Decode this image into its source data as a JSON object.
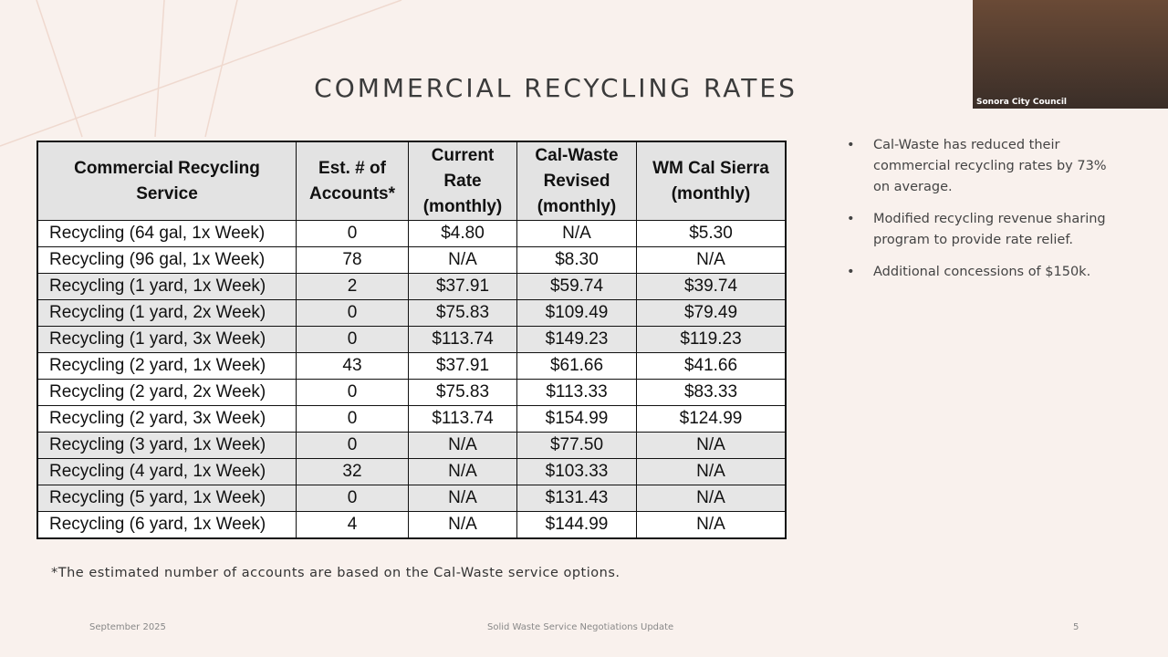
{
  "header": {
    "title": "COMMERCIAL RECYCLING RATES"
  },
  "table": {
    "columns": [
      "Commercial Recycling Service",
      "Est. # of Accounts*",
      "Current Rate (monthly)",
      "Cal-Waste Revised (monthly)",
      "WM Cal Sierra (monthly)"
    ],
    "rows": [
      [
        "Recycling (64 gal, 1x Week)",
        "0",
        "$4.80",
        "N/A",
        "$5.30"
      ],
      [
        "Recycling (96 gal, 1x Week)",
        "78",
        "N/A",
        "$8.30",
        "N/A"
      ],
      [
        "Recycling (1 yard, 1x Week)",
        "2",
        "$37.91",
        "$59.74",
        "$39.74"
      ],
      [
        "Recycling (1 yard, 2x Week)",
        "0",
        "$75.83",
        "$109.49",
        "$79.49"
      ],
      [
        "Recycling (1 yard, 3x Week)",
        "0",
        "$113.74",
        "$149.23",
        "$119.23"
      ],
      [
        "Recycling (2 yard, 1x Week)",
        "43",
        "$37.91",
        "$61.66",
        "$41.66"
      ],
      [
        "Recycling (2 yard, 2x Week)",
        "0",
        "$75.83",
        "$113.33",
        "$83.33"
      ],
      [
        "Recycling (2 yard, 3x Week)",
        "0",
        "$113.74",
        "$154.99",
        "$124.99"
      ],
      [
        "Recycling (3 yard, 1x Week)",
        "0",
        "N/A",
        "$77.50",
        "N/A"
      ],
      [
        "Recycling (4 yard, 1x Week)",
        "32",
        "N/A",
        "$103.33",
        "N/A"
      ],
      [
        "Recycling (5 yard, 1x Week)",
        "0",
        "N/A",
        "$131.43",
        "N/A"
      ],
      [
        "Recycling (6 yard, 1x Week)",
        "4",
        "N/A",
        "$144.99",
        "N/A"
      ]
    ]
  },
  "bullets": [
    "Cal-Waste has reduced their commercial recycling rates by 73% on average.",
    "Modified recycling revenue sharing program to provide rate relief.",
    "Additional concessions of $150k."
  ],
  "footnote": "*The estimated number of accounts are based on the Cal-Waste service options.",
  "footer": {
    "date": "September 2025",
    "center": "Solid Waste Service Negotiations Update",
    "page": "5"
  },
  "video": {
    "caption": "Sonora City Council"
  }
}
